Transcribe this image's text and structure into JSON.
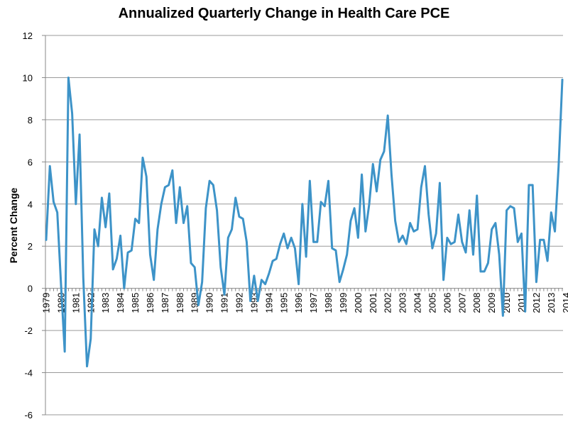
{
  "chart_data": {
    "type": "line",
    "title": "Annualized Quarterly Change in Health Care PCE",
    "xlabel": "",
    "ylabel": "Percent Change",
    "ylim": [
      -6,
      12
    ],
    "yticks": [
      -6,
      -4,
      -2,
      0,
      2,
      4,
      6,
      8,
      10,
      12
    ],
    "xtick_labels": [
      "1979",
      "1980",
      "1981",
      "1982",
      "1983",
      "1984",
      "1985",
      "1986",
      "1987",
      "1988",
      "1989",
      "1990",
      "1991",
      "1992",
      "1993",
      "1994",
      "1995",
      "1996",
      "1997",
      "1998",
      "1999",
      "2000",
      "2001",
      "2002",
      "2003",
      "2004",
      "2005",
      "2006",
      "2007",
      "2008",
      "2009",
      "2010",
      "2011",
      "2012",
      "2013",
      "2014"
    ],
    "x_start": 1979.0,
    "x_step": 0.25,
    "grid": "horizontal",
    "line_color": "#3d93c8",
    "series": [
      {
        "values": [
          2.3,
          5.8,
          4.1,
          3.6,
          0.2,
          -3.0,
          10.0,
          8.3,
          4.0,
          7.3,
          0.5,
          -3.7,
          -2.4,
          2.8,
          2.0,
          4.3,
          2.9,
          4.5,
          0.9,
          1.4,
          2.5,
          0.0,
          1.7,
          1.8,
          3.3,
          3.1,
          6.2,
          5.3,
          1.6,
          0.4,
          2.8,
          4.0,
          4.8,
          4.9,
          5.6,
          3.1,
          4.8,
          3.1,
          3.9,
          1.2,
          1.0,
          -0.8,
          0.3,
          3.8,
          5.1,
          4.9,
          3.7,
          1.0,
          -0.3,
          2.4,
          2.8,
          4.3,
          3.4,
          3.3,
          2.2,
          -0.6,
          0.6,
          -0.6,
          0.4,
          0.2,
          0.7,
          1.3,
          1.4,
          2.1,
          2.6,
          1.9,
          2.4,
          1.9,
          0.2,
          4.0,
          1.5,
          5.1,
          2.2,
          2.2,
          4.1,
          3.9,
          5.1,
          1.9,
          1.8,
          0.3,
          0.9,
          1.6,
          3.2,
          3.8,
          2.4,
          5.4,
          2.7,
          4.0,
          5.9,
          4.6,
          6.1,
          6.5,
          8.2,
          5.4,
          3.2,
          2.2,
          2.5,
          2.1,
          3.1,
          2.7,
          2.8,
          4.8,
          5.8,
          3.5,
          1.9,
          2.6,
          5.0,
          0.4,
          2.4,
          2.1,
          2.2,
          3.5,
          2.2,
          1.7,
          3.7,
          1.6,
          4.4,
          0.8,
          0.8,
          1.2,
          2.8,
          3.1,
          1.6,
          -1.3,
          3.7,
          3.9,
          3.8,
          2.2,
          2.6,
          -1.1,
          4.9,
          4.9,
          0.3,
          2.3,
          2.3,
          1.3,
          3.6,
          2.7,
          5.8,
          9.9
        ]
      }
    ]
  }
}
